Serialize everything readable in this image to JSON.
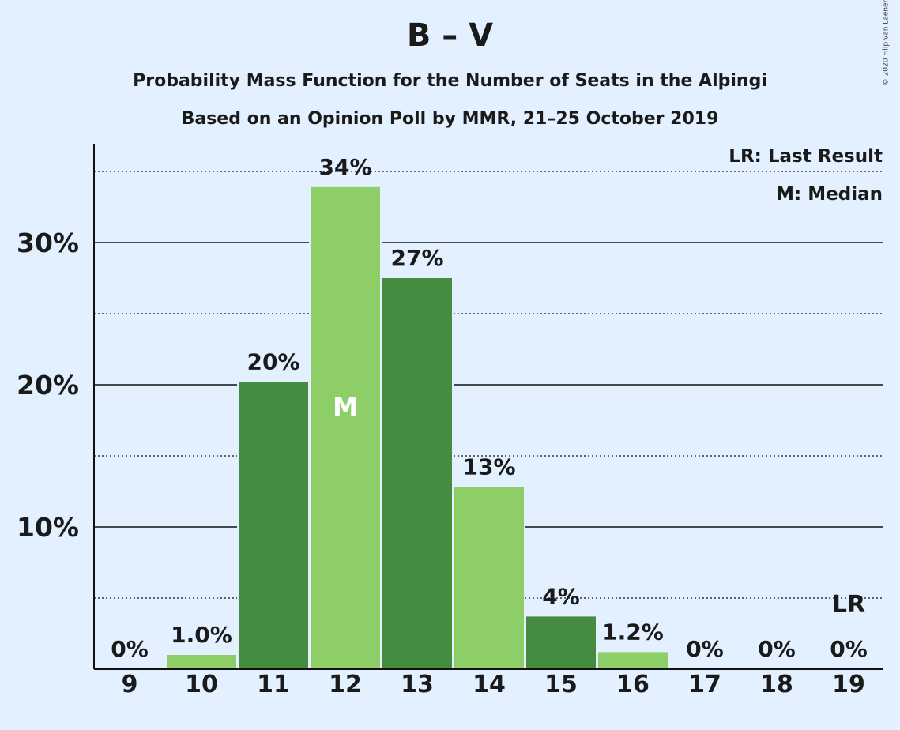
{
  "title": "B – V",
  "subtitle1": "Probability Mass Function for the Number of Seats in the Alþingi",
  "subtitle2": "Based on an Opinion Poll by MMR, 21–25 October 2019",
  "copyright": "© 2020 Filip van Laenen",
  "legend": {
    "last_result": "LR: Last Result",
    "median": "M: Median"
  },
  "colors": {
    "dark_bar": "#458c40",
    "light_bar": "#8dcf66",
    "background": "#e2f0ff"
  },
  "chart_data": {
    "type": "bar",
    "categories": [
      "9",
      "10",
      "11",
      "12",
      "13",
      "14",
      "15",
      "16",
      "17",
      "18",
      "19"
    ],
    "values": [
      0,
      1.0,
      20.2,
      33.9,
      27.5,
      12.8,
      3.7,
      1.2,
      0,
      0,
      0
    ],
    "labels": [
      "0%",
      "1.0%",
      "20%",
      "34%",
      "27%",
      "13%",
      "4%",
      "1.2%",
      "0%",
      "0%",
      "0%"
    ],
    "yticks": [
      10,
      20,
      30
    ],
    "ytick_labels": [
      "10%",
      "20%",
      "30%"
    ],
    "ylim": [
      0,
      37
    ],
    "grid": "solid lines at 10% steps, dotted lines at 5% offsets",
    "median_category": "12",
    "median_marker": "M",
    "last_result_category": "19",
    "last_result_marker": "LR"
  }
}
